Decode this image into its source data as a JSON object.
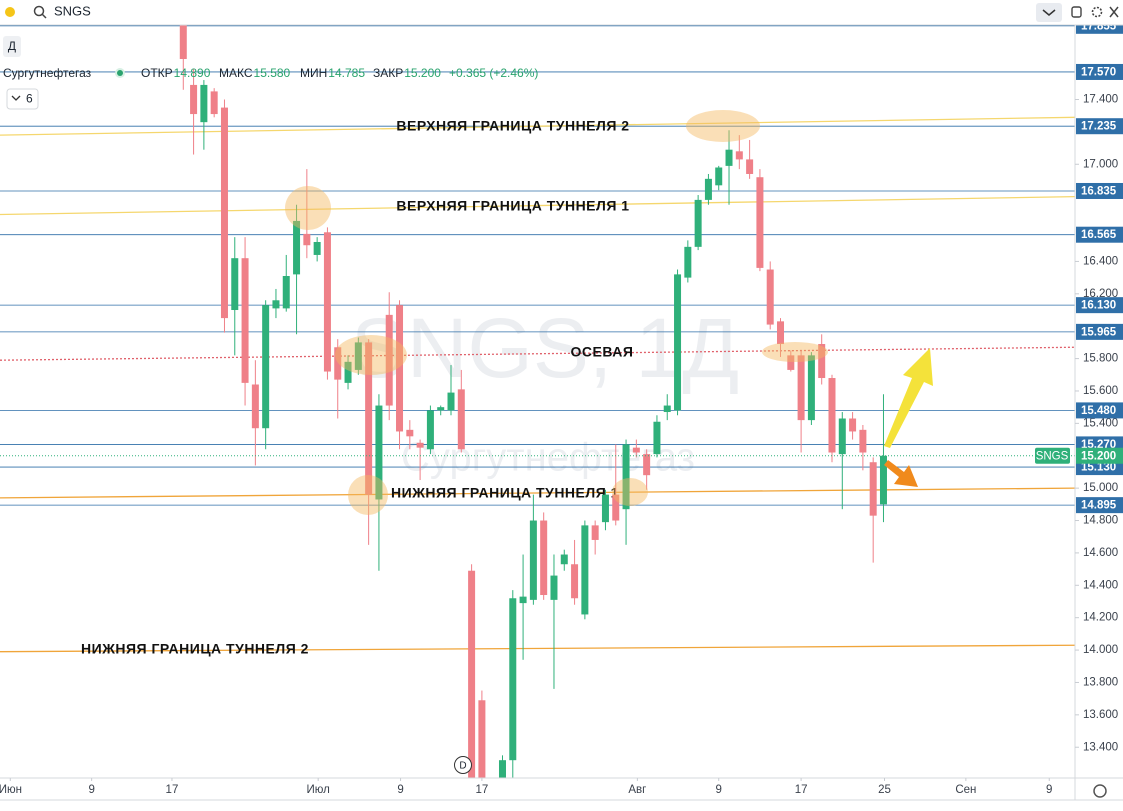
{
  "header": {
    "symbol": "SNGS",
    "interval_button": "Д",
    "company": "Сургутнефтегаз",
    "ohlc": [
      {
        "label": "ОТКР",
        "value": "14.890"
      },
      {
        "label": "МАКС",
        "value": "15.580"
      },
      {
        "label": "МИН",
        "value": "14.785"
      },
      {
        "label": "ЗАКР",
        "value": "15.200"
      }
    ],
    "change": "+0.365 (+2.46%)",
    "indicator_count": "6",
    "event_marker": "D"
  },
  "chart_data": {
    "type": "candlestick",
    "watermark": [
      "SNGS, 1Д",
      "Сургутнефтегаз"
    ],
    "up_color": "#2fb07a",
    "down_color": "#ef8088",
    "x": [
      0,
      1,
      2,
      3,
      4,
      5,
      6,
      7,
      8,
      9,
      10,
      11,
      12,
      13,
      14,
      15,
      16,
      17,
      18,
      19,
      20,
      21,
      22,
      23,
      24,
      25,
      26,
      27,
      28,
      29,
      31,
      32,
      33,
      34,
      35,
      36,
      37,
      38,
      39,
      40,
      41,
      42,
      43,
      44,
      45,
      46,
      47,
      48,
      49,
      50,
      51,
      52,
      53,
      54,
      55,
      56,
      57,
      58,
      59,
      60,
      61,
      62,
      63,
      64,
      65,
      66,
      67,
      68
    ],
    "open": [
      17.86,
      17.49,
      17.26,
      17.45,
      17.35,
      16.1,
      16.42,
      15.64,
      15.37,
      16.11,
      16.11,
      16.32,
      16.57,
      16.44,
      16.58,
      15.87,
      15.65,
      15.73,
      15.9,
      14.93,
      16.07,
      16.13,
      15.36,
      15.28,
      15.24,
      15.48,
      15.48,
      15.61,
      14.49,
      13.69,
      13.21,
      13.32,
      14.29,
      14.31,
      14.8,
      14.31,
      14.53,
      14.53,
      14.22,
      14.77,
      14.79,
      14.96,
      14.87,
      15.25,
      15.21,
      15.21,
      15.47,
      15.48,
      16.3,
      16.49,
      16.78,
      16.87,
      16.99,
      17.08,
      17.03,
      16.92,
      16.35,
      16.03,
      15.82,
      15.82,
      15.42,
      15.89,
      15.68,
      15.21,
      15.43,
      15.36,
      15.16,
      14.9
    ],
    "high": [
      17.86,
      17.59,
      17.52,
      17.47,
      17.4,
      16.55,
      16.55,
      15.79,
      16.16,
      16.23,
      16.44,
      16.75,
      16.97,
      16.55,
      16.61,
      15.92,
      15.82,
      15.93,
      15.92,
      15.58,
      16.21,
      16.16,
      15.42,
      15.3,
      15.51,
      15.51,
      15.76,
      15.73,
      14.53,
      13.75,
      13.35,
      14.37,
      14.59,
      14.96,
      14.85,
      14.59,
      14.62,
      14.68,
      14.8,
      14.8,
      14.99,
      15.27,
      15.3,
      15.3,
      15.24,
      15.45,
      15.58,
      16.35,
      16.53,
      16.81,
      16.94,
      16.99,
      17.21,
      17.18,
      17.15,
      16.97,
      16.4,
      16.05,
      15.85,
      15.85,
      15.84,
      15.95,
      15.7,
      15.47,
      15.47,
      15.39,
      15.19,
      15.58
    ],
    "low": [
      17.46,
      17.06,
      17.09,
      17.29,
      15.96,
      15.82,
      15.51,
      15.14,
      15.24,
      16.05,
      16.09,
      15.95,
      16.42,
      16.4,
      15.67,
      15.43,
      15.61,
      15.7,
      14.65,
      14.49,
      15.42,
      15.24,
      15.24,
      15.05,
      15.21,
      15.45,
      15.45,
      15.22,
      13.21,
      13.21,
      13.21,
      13.21,
      13.94,
      14.28,
      14.31,
      13.76,
      14.49,
      14.28,
      14.19,
      14.59,
      14.74,
      14.77,
      14.65,
      15.19,
      14.99,
      15.19,
      15.42,
      15.45,
      16.27,
      16.47,
      16.75,
      16.84,
      16.75,
      16.97,
      16.91,
      16.34,
      15.98,
      15.81,
      15.72,
      15.22,
      15.39,
      15.64,
      15.16,
      14.87,
      15.3,
      15.11,
      14.54,
      14.79
    ],
    "close": [
      17.65,
      17.31,
      17.49,
      17.31,
      16.05,
      16.42,
      15.65,
      15.37,
      16.13,
      16.16,
      16.31,
      16.65,
      16.5,
      16.52,
      15.72,
      15.67,
      15.78,
      15.9,
      14.96,
      15.51,
      15.51,
      15.35,
      15.32,
      15.25,
      15.48,
      15.5,
      15.59,
      15.24,
      13.21,
      13.21,
      13.32,
      14.32,
      14.33,
      14.8,
      14.34,
      14.46,
      14.59,
      14.32,
      14.77,
      14.68,
      14.96,
      14.8,
      15.27,
      15.22,
      15.08,
      15.41,
      15.51,
      16.32,
      16.49,
      16.78,
      16.91,
      16.98,
      17.09,
      17.03,
      16.94,
      16.36,
      16.01,
      15.89,
      15.73,
      15.42,
      15.82,
      15.68,
      15.22,
      15.43,
      15.35,
      15.22,
      14.83,
      15.2
    ],
    "xlim": [
      -17.8,
      86.6
    ],
    "ylim": [
      13.21,
      17.86
    ],
    "xticks": [
      {
        "value": -16.8,
        "label": "Июн"
      },
      {
        "value": -8.9,
        "label": "9"
      },
      {
        "value": -1.1,
        "label": "17"
      },
      {
        "value": 13.1,
        "label": "Июл"
      },
      {
        "value": 21.1,
        "label": "9"
      },
      {
        "value": 29.0,
        "label": "17"
      },
      {
        "value": 44.1,
        "label": "Авг"
      },
      {
        "value": 52.0,
        "label": "9"
      },
      {
        "value": 60.0,
        "label": "17"
      },
      {
        "value": 68.1,
        "label": "25"
      },
      {
        "value": 76.0,
        "label": "Сен"
      },
      {
        "value": 84.1,
        "label": "9"
      }
    ],
    "yticks": [
      {
        "value": 17.4,
        "label": "17.400"
      },
      {
        "value": 17.0,
        "label": "17.000"
      },
      {
        "value": 16.4,
        "label": "16.400"
      },
      {
        "value": 16.2,
        "label": "16.200"
      },
      {
        "value": 15.8,
        "label": "15.800"
      },
      {
        "value": 15.6,
        "label": "15.600"
      },
      {
        "value": 15.4,
        "label": "15.400"
      },
      {
        "value": 15.0,
        "label": "15.000"
      },
      {
        "value": 14.8,
        "label": "14.800"
      },
      {
        "value": 14.6,
        "label": "14.600"
      },
      {
        "value": 14.4,
        "label": "14.400"
      },
      {
        "value": 14.2,
        "label": "14.200"
      },
      {
        "value": 14.0,
        "label": "14.000"
      },
      {
        "value": 13.8,
        "label": "13.800"
      },
      {
        "value": 13.6,
        "label": "13.600"
      },
      {
        "value": 13.4,
        "label": "13.400"
      }
    ],
    "levels": [
      17.855,
      {
        "value": 17.57,
        "label": "17.570"
      },
      17.235,
      16.835,
      16.565,
      {
        "value": 16.13,
        "label": "16.130"
      },
      15.965,
      {
        "value": 15.48,
        "label": "15.480"
      },
      {
        "value": 15.27,
        "label": "15.270"
      },
      {
        "value": 15.13,
        "label": "15.130"
      },
      14.895
    ],
    "level_color": "#2f6fa8",
    "last_price": {
      "value": 15.2,
      "label": "15.200",
      "tag": "SNGS",
      "color": "#2fb07a"
    },
    "trend_lines": [
      {
        "label": "ВЕРХНЯЯ ГРАНИЦА ТУННЕЛЯ 2",
        "color": "#f5d76e",
        "x": [
          -17.8,
          86.6
        ],
        "y": [
          17.18,
          17.29
        ]
      },
      {
        "label": "ВЕРХНЯЯ ГРАНИЦА ТУННЕЛЯ 1",
        "color": "#f5d76e",
        "x": [
          -17.8,
          86.6
        ],
        "y": [
          16.69,
          16.8
        ]
      },
      {
        "label": "ОСЕВАЯ",
        "color": "#e0606a",
        "dashed": true,
        "x": [
          -17.8,
          86.6
        ],
        "y": [
          15.79,
          15.87
        ]
      },
      {
        "label": "НИЖНЯЯ ГРАНИЦА ТУННЕЛЯ 1",
        "color": "#f0a53a",
        "x": [
          -17.8,
          86.6
        ],
        "y": [
          14.94,
          15.0
        ]
      },
      {
        "label": "НИЖНЯЯ ГРАНИЦА ТУННЕЛЯ 2",
        "color": "#f0a53a",
        "x": [
          -17.8,
          86.6
        ],
        "y": [
          13.99,
          14.03
        ]
      }
    ]
  }
}
